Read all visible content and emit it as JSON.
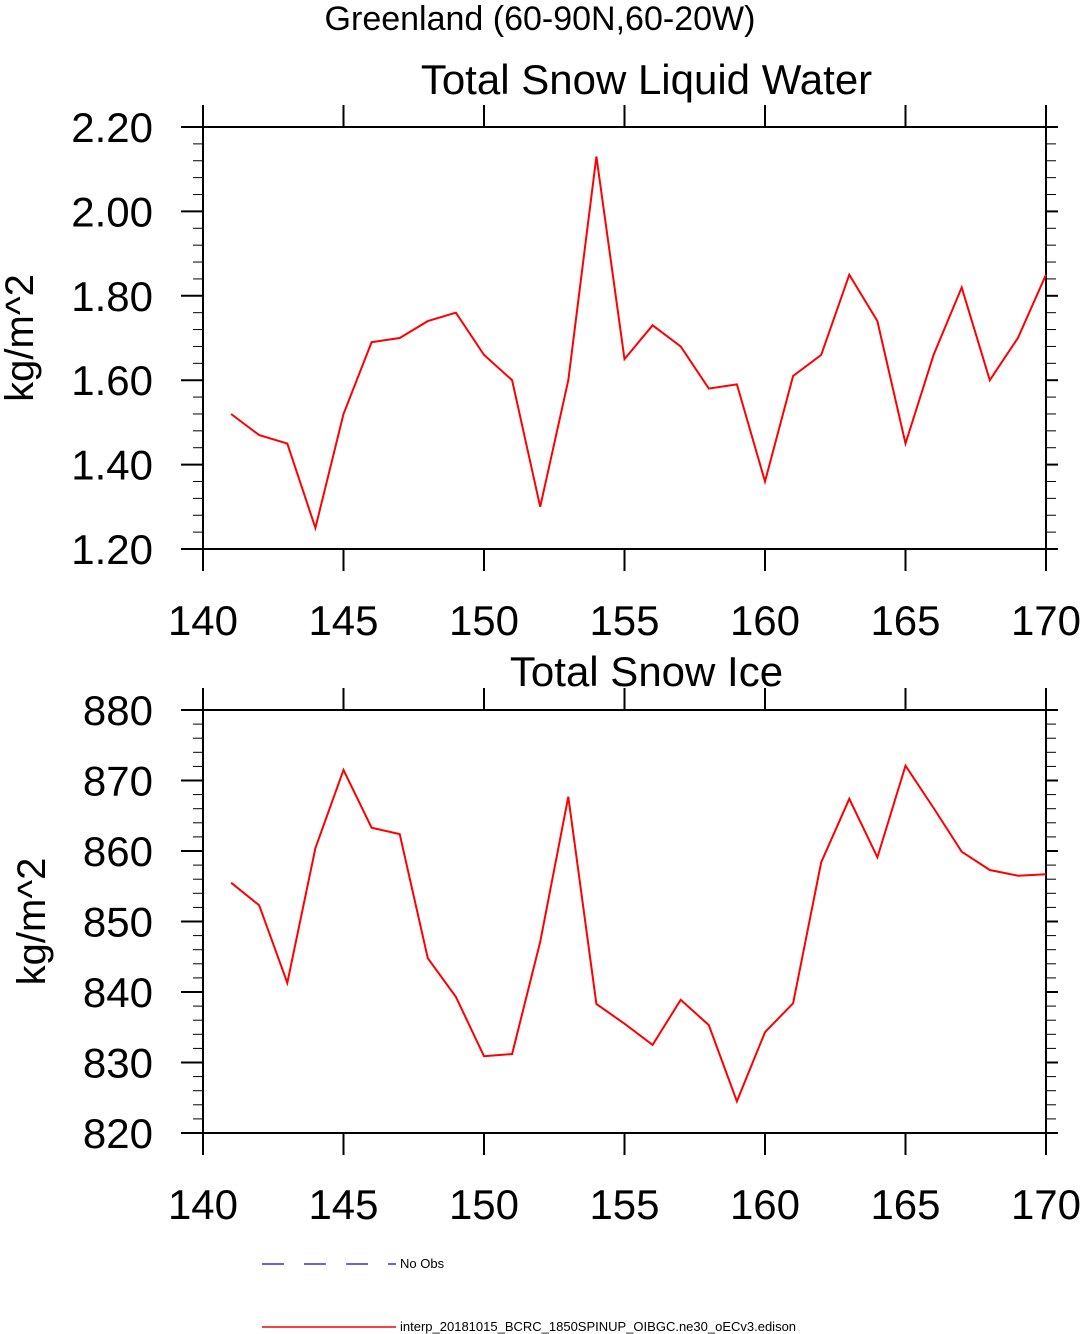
{
  "figure_title": "Greenland (60-90N,60-20W)",
  "colors": {
    "series": "#ff0000",
    "no_obs": "#3333cc",
    "axis": "#000000"
  },
  "legend": [
    {
      "label": "No Obs",
      "style": "dashed",
      "color": "#3333cc"
    },
    {
      "label": "interp_20181015_BCRC_1850SPINUP_OIBGC.ne30_oECv3.edison",
      "style": "solid",
      "color": "#ff0000"
    }
  ],
  "chart_data": [
    {
      "type": "line",
      "title": "Total Snow Liquid Water",
      "xlabel": "",
      "ylabel": "kg/m^2",
      "xlim": [
        140,
        170
      ],
      "ylim": [
        1.2,
        2.2
      ],
      "xticks": [
        "140",
        "145",
        "150",
        "155",
        "160",
        "165",
        "170"
      ],
      "yticks": [
        "1.20",
        "1.40",
        "1.60",
        "1.80",
        "2.00",
        "2.20"
      ],
      "grid": false,
      "series": [
        {
          "name": "interp_20181015_BCRC_1850SPINUP_OIBGC.ne30_oECv3.edison",
          "x": [
            141,
            142,
            143,
            144,
            145,
            146,
            147,
            148,
            149,
            150,
            151,
            152,
            153,
            154,
            155,
            156,
            157,
            158,
            159,
            160,
            161,
            162,
            163,
            164,
            165,
            166,
            167,
            168,
            169,
            170
          ],
          "values": [
            1.52,
            1.47,
            1.45,
            1.25,
            1.52,
            1.69,
            1.7,
            1.74,
            1.76,
            1.66,
            1.6,
            1.3,
            1.6,
            2.13,
            1.65,
            1.73,
            1.68,
            1.58,
            1.59,
            1.36,
            1.61,
            1.66,
            1.85,
            1.74,
            1.45,
            1.66,
            1.82,
            1.6,
            1.7,
            1.85
          ]
        }
      ]
    },
    {
      "type": "line",
      "title": "Total Snow Ice",
      "xlabel": "",
      "ylabel": "kg/m^2",
      "xlim": [
        140,
        170
      ],
      "ylim": [
        820,
        880
      ],
      "xticks": [
        "140",
        "145",
        "150",
        "155",
        "160",
        "165",
        "170"
      ],
      "yticks": [
        "820",
        "830",
        "840",
        "850",
        "860",
        "870",
        "880"
      ],
      "grid": false,
      "series": [
        {
          "name": "interp_20181015_BCRC_1850SPINUP_OIBGC.ne30_oECv3.edison",
          "x": [
            141,
            142,
            143,
            144,
            145,
            146,
            147,
            148,
            149,
            150,
            151,
            152,
            153,
            154,
            155,
            156,
            157,
            158,
            159,
            160,
            161,
            162,
            163,
            164,
            165,
            166,
            167,
            168,
            169,
            170
          ],
          "values": [
            855.5,
            852.3,
            841.3,
            860.4,
            871.5,
            863.3,
            862.4,
            844.8,
            839.3,
            830.9,
            831.2,
            847.1,
            867.7,
            838.3,
            835.5,
            832.5,
            838.9,
            835.3,
            824.5,
            834.3,
            838.4,
            858.4,
            867.4,
            859.1,
            872.1,
            866.1,
            859.9,
            857.3,
            856.5,
            856.7
          ]
        }
      ]
    }
  ]
}
